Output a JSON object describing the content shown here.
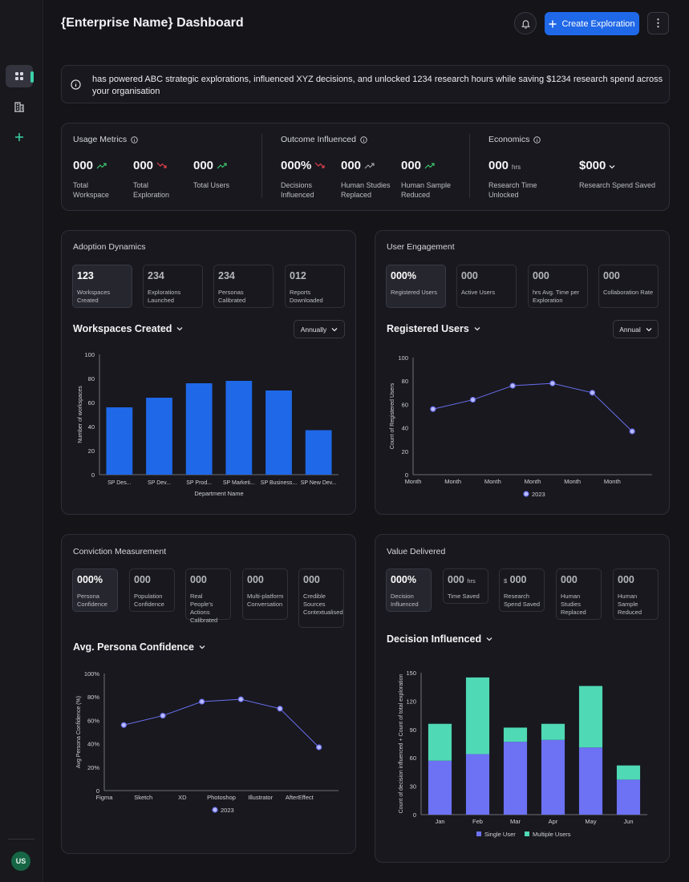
{
  "header": {
    "title": "{Enterprise Name} Dashboard",
    "create_button_label": "Create Exploration",
    "more_label": "⋮"
  },
  "sidebar": {
    "items": [
      "grid-icon",
      "building-icon",
      "plus-icon"
    ],
    "avatar_initials": "US"
  },
  "banner": {
    "text": "has powered ABC strategic explorations, influenced XYZ decisions, and unlocked 1234 research hours while saving $1234 research spend across your organisation"
  },
  "summary": {
    "usage": {
      "title": "Usage Metrics",
      "metrics": [
        {
          "value": "000",
          "label": "Total Workspace",
          "trend": "up"
        },
        {
          "value": "000",
          "label": "Total Exploration",
          "trend": "down"
        },
        {
          "value": "000",
          "label": "Total Users",
          "trend": "up"
        }
      ]
    },
    "outcome": {
      "title": "Outcome Influenced",
      "metrics": [
        {
          "value": "000%",
          "label": "Decisions Influenced",
          "trend": "down"
        },
        {
          "value": "000",
          "label": "Human Studies Replaced",
          "trend": "neutral"
        },
        {
          "value": "000",
          "label": "Human Sample Reduced",
          "trend": "up"
        }
      ]
    },
    "economics": {
      "title": "Economics",
      "metrics": [
        {
          "value": "000",
          "unit": "hrs",
          "label": "Research Time Unlocked"
        },
        {
          "value": "$000",
          "label": "Research Spend Saved"
        }
      ]
    }
  },
  "adoption": {
    "title": "Adoption Dynamics",
    "stats": [
      {
        "value": "123",
        "label": "Workspaces Created"
      },
      {
        "value": "234",
        "label": "Explorations Launched"
      },
      {
        "value": "234",
        "label": "Personas Calibrated"
      },
      {
        "value": "012",
        "label": "Reports Downloaded"
      }
    ],
    "chart_title": "Workspaces Created",
    "period": "Annually"
  },
  "engagement": {
    "title": "User Engagement",
    "stats": [
      {
        "value": "000%",
        "unit": "",
        "label": "Registered Users"
      },
      {
        "value": "000",
        "unit": "",
        "label": "Active Users"
      },
      {
        "value": "000",
        "unit": "",
        "label": "hrs Avg. Time per Exploration"
      },
      {
        "value": "000",
        "unit": "",
        "label": "Collaboration Rate"
      }
    ],
    "chart_title": "Registered Users",
    "period": "Annual"
  },
  "conviction": {
    "title": "Conviction Measurement",
    "stats": [
      {
        "value": "000%",
        "label": "Persona Confidence"
      },
      {
        "value": "000",
        "label": "Population Confidence"
      },
      {
        "value": "000",
        "label": "Real People's Actions Calibrated"
      },
      {
        "value": "000",
        "label": "Multi-platform Conversation"
      },
      {
        "value": "000",
        "label": "Credible Sources Contextualised"
      }
    ],
    "chart_title": "Avg. Persona Confidence"
  },
  "value": {
    "title": "Value Delivered",
    "stats": [
      {
        "value": "000%",
        "unit": "",
        "prefix": "",
        "label": "Decision Influenced"
      },
      {
        "value": "000",
        "unit": "hrs",
        "prefix": "",
        "label": "Time Saved"
      },
      {
        "value": "000",
        "unit": "",
        "prefix": "$",
        "label": "Research Spend Saved"
      },
      {
        "value": "000",
        "unit": "",
        "prefix": "",
        "label": "Human Studies Replaced"
      },
      {
        "value": "000",
        "unit": "",
        "prefix": "",
        "label": "Human Sample Reduced"
      }
    ],
    "chart_title": "Decision Influenced"
  },
  "colors": {
    "bar_blue": "#1f68e8",
    "line_purple": "#6a6ff0",
    "stack_purple": "#6c72f3",
    "stack_teal": "#4fd9b4",
    "trend_up": "#3ec46d",
    "trend_down": "#e0404e"
  },
  "chart_data": [
    {
      "type": "bar",
      "categories": [
        "SP Des...",
        "SP Dev...",
        "SP Prod...",
        "SP Marketi...",
        "SP Business...",
        "SP New Dev..."
      ],
      "values": [
        56,
        64,
        76,
        78,
        70,
        37
      ],
      "xlabel": "Department Name",
      "ylabel": "Number of workspaces",
      "ylim": [
        0,
        100
      ],
      "yticks": [
        0,
        20,
        40,
        60,
        80,
        100
      ]
    },
    {
      "type": "line",
      "categories": [
        "Month",
        "Month",
        "Month",
        "Month",
        "Month",
        "Month"
      ],
      "series": [
        {
          "name": "2023",
          "values": [
            56,
            64,
            76,
            78,
            70,
            37
          ]
        }
      ],
      "ylabel": "Count of Registered Users",
      "ylim": [
        0,
        100
      ],
      "yticks": [
        0,
        20,
        40,
        60,
        80,
        100
      ],
      "legend": "bottom"
    },
    {
      "type": "line",
      "categories": [
        "Figma",
        "Sketch",
        "XD",
        "Photoshop",
        "Illustrator",
        "AfterEffect"
      ],
      "series": [
        {
          "name": "2023",
          "values": [
            56,
            64,
            76,
            78,
            70,
            37
          ]
        }
      ],
      "ylabel": "Avg Persona Confidence (%)",
      "ylim": [
        0,
        100
      ],
      "yticks": [
        "0",
        "20%",
        "40%",
        "60%",
        "80%",
        "100%"
      ],
      "legend": "bottom"
    },
    {
      "type": "bar",
      "stacked": true,
      "categories": [
        "Jan",
        "Feb",
        "Mar",
        "Apr",
        "May",
        "Jun"
      ],
      "series": [
        {
          "name": "Single User",
          "values": [
            57,
            64,
            77,
            79,
            71,
            37
          ]
        },
        {
          "name": "Multiple Users",
          "values": [
            39,
            81,
            15,
            17,
            65,
            15
          ]
        }
      ],
      "ylabel": "Count of decision influenced + Count of total exploration",
      "ylim": [
        0,
        150
      ],
      "yticks": [
        0,
        30,
        60,
        90,
        120,
        150
      ],
      "legend": "bottom"
    }
  ]
}
